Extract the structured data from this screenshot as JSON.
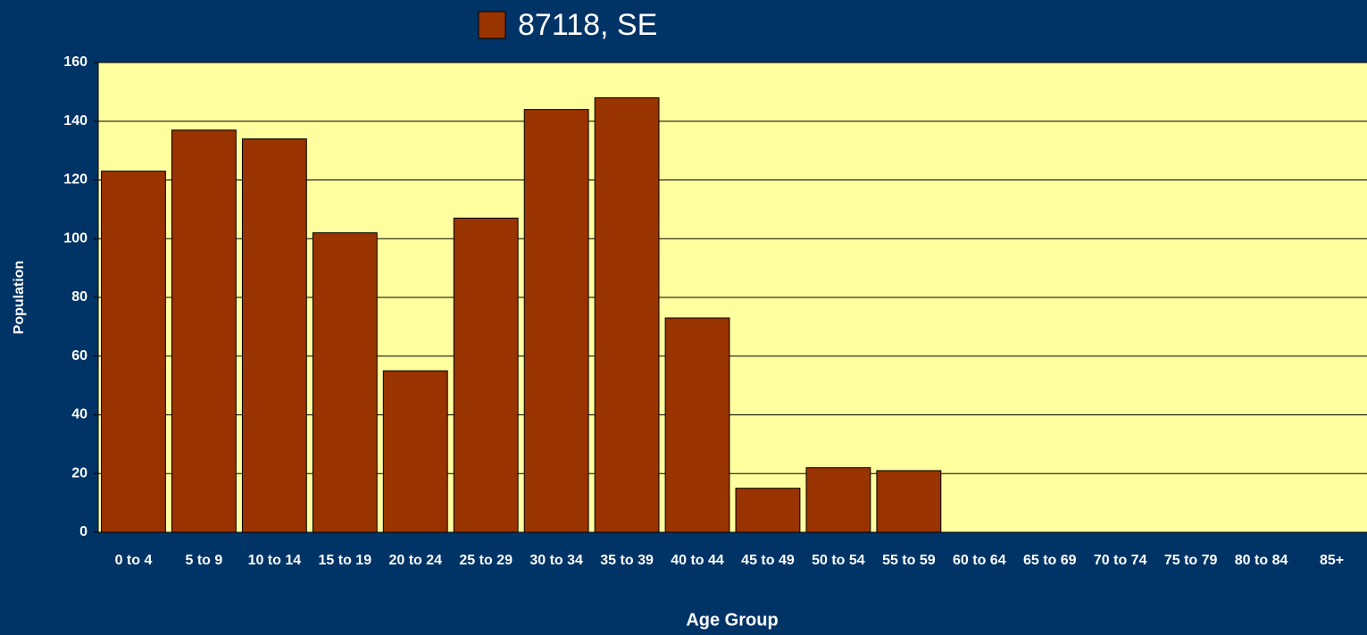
{
  "chart_data": {
    "type": "bar",
    "legend": "87118, SE",
    "xlabel": "Age Group",
    "ylabel": "Population",
    "categories": [
      "0 to 4",
      "5 to 9",
      "10 to 14",
      "15 to 19",
      "20 to 24",
      "25 to 29",
      "30 to 34",
      "35 to 39",
      "40 to 44",
      "45 to 49",
      "50 to 54",
      "55 to 59",
      "60 to 64",
      "65 to 69",
      "70 to 74",
      "75 to 79",
      "80 to 84",
      "85+"
    ],
    "series": [
      {
        "name": "87118, SE",
        "color": "#993300",
        "values": [
          123,
          137,
          134,
          102,
          55,
          107,
          144,
          148,
          73,
          15,
          22,
          21,
          0,
          0,
          0,
          0,
          0,
          0
        ]
      }
    ],
    "ylim": [
      0,
      160
    ],
    "yticks": [
      0,
      20,
      40,
      60,
      80,
      100,
      120,
      140,
      160
    ],
    "grid": true
  }
}
